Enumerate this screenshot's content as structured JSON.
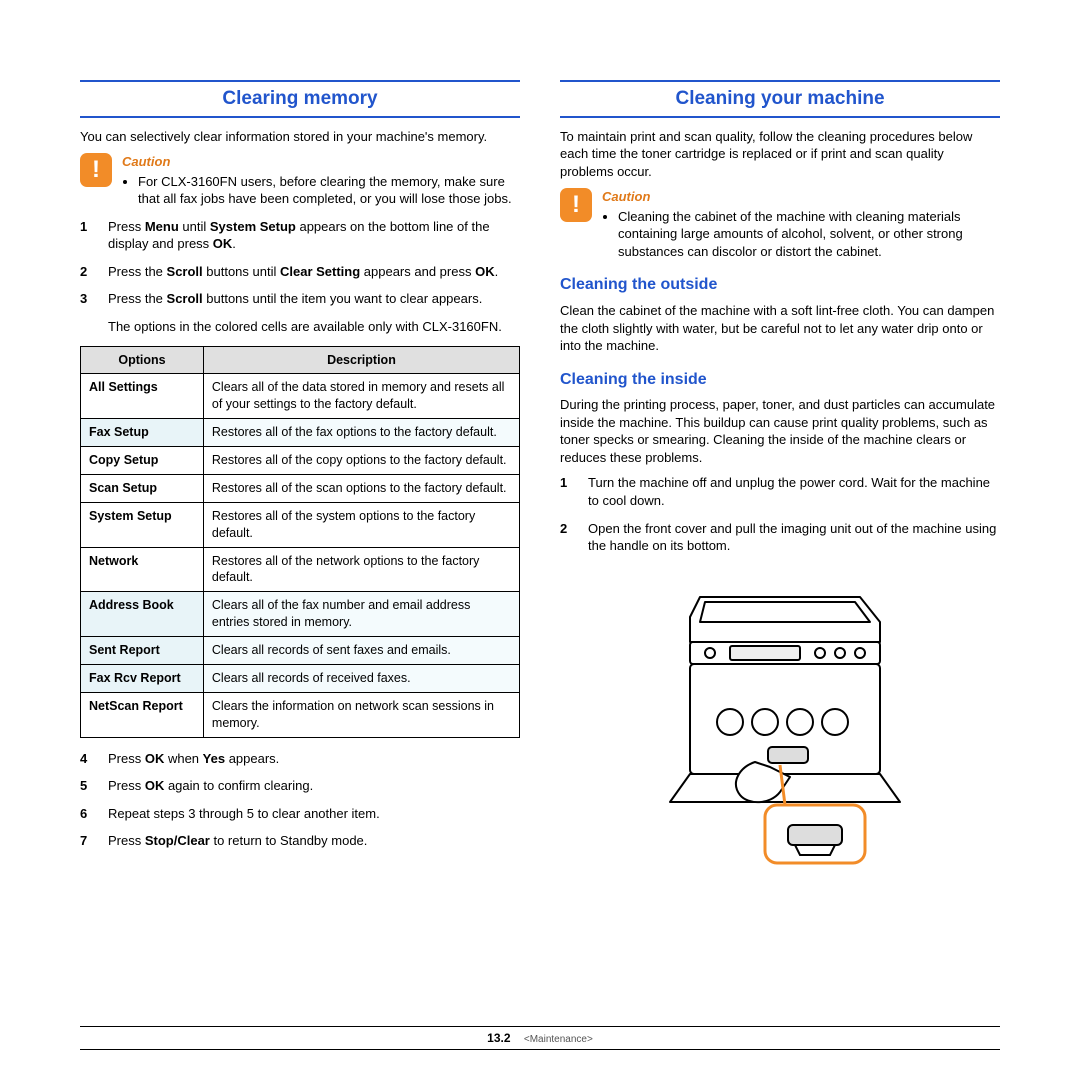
{
  "left": {
    "title": "Clearing memory",
    "intro": "You can selectively clear information stored in your machine's memory.",
    "caution": {
      "label": "Caution",
      "items": [
        "For CLX-3160FN users, before clearing the memory, make sure that all fax jobs have been completed, or you will lose those jobs."
      ]
    },
    "steps_a": [
      {
        "n": "1",
        "html": "Press <b>Menu</b> until <b>System Setup</b> appears on the bottom line of the display and press <b>OK</b>."
      },
      {
        "n": "2",
        "html": "Press the <b>Scroll</b> buttons until <b>Clear Setting</b> appears and press <b>OK</b>."
      },
      {
        "n": "3",
        "html": "Press the <b>Scroll</b> buttons until the item you want to clear appears.",
        "extra": "The options in the colored cells are available only with CLX-3160FN."
      }
    ],
    "table": {
      "headers": [
        "Options",
        "Description"
      ],
      "rows": [
        {
          "opt": "All Settings",
          "desc": "Clears all of the data stored in memory and resets all of your settings to the factory default.",
          "tint": false
        },
        {
          "opt": "Fax Setup",
          "desc": "Restores all of the fax options to the factory default.",
          "tint": true
        },
        {
          "opt": "Copy Setup",
          "desc": "Restores all of the copy options to the factory default.",
          "tint": false
        },
        {
          "opt": "Scan Setup",
          "desc": "Restores all of the scan options to the factory default.",
          "tint": false
        },
        {
          "opt": "System Setup",
          "desc": "Restores all of the system options to the factory default.",
          "tint": false
        },
        {
          "opt": "Network",
          "desc": "Restores all of the network options to the factory default.",
          "tint": false
        },
        {
          "opt": "Address Book",
          "desc": "Clears all of the fax number and email address entries stored in memory.",
          "tint": true
        },
        {
          "opt": "Sent Report",
          "desc": "Clears all records of sent faxes and emails.",
          "tint": true
        },
        {
          "opt": "Fax Rcv Report",
          "desc": "Clears all records of received faxes.",
          "tint": true
        },
        {
          "opt": "NetScan Report",
          "desc": "Clears the information on network scan sessions in memory.",
          "tint": false
        }
      ]
    },
    "steps_b": [
      {
        "n": "4",
        "html": "Press <b>OK</b> when <b>Yes</b> appears."
      },
      {
        "n": "5",
        "html": "Press <b>OK</b> again to confirm clearing."
      },
      {
        "n": "6",
        "html": "Repeat steps 3 through 5 to clear another item."
      },
      {
        "n": "7",
        "html": "Press <b>Stop/Clear</b> to return to Standby mode."
      }
    ]
  },
  "right": {
    "title": "Cleaning your machine",
    "intro": "To maintain print and scan quality, follow the cleaning procedures below each time the toner cartridge is replaced or if print and scan quality problems occur.",
    "caution": {
      "label": "Caution",
      "items": [
        "Cleaning the cabinet of the machine with cleaning materials containing large amounts of alcohol, solvent, or other strong substances can discolor or distort the cabinet."
      ]
    },
    "outside": {
      "title": "Cleaning the outside",
      "text": "Clean the cabinet of the machine with a soft lint-free cloth. You can dampen the cloth slightly with water, but be careful not to let any water drip onto or into the machine."
    },
    "inside": {
      "title": "Cleaning the inside",
      "text": "During the printing process, paper, toner, and dust particles can accumulate inside the machine. This buildup can cause print quality problems, such as toner specks or smearing. Cleaning the inside of the machine clears or reduces these problems.",
      "steps": [
        {
          "n": "1",
          "html": "Turn the machine off and unplug the power cord. Wait for the machine to cool down."
        },
        {
          "n": "2",
          "html": "Open the front cover and pull the imaging unit out of the machine using the handle on its bottom."
        }
      ]
    }
  },
  "footer": {
    "page": "13.2",
    "chapter": "<Maintenance>"
  },
  "colors": {
    "accent": "#2155cc",
    "caution": "#f28c28",
    "caution_text": "#e07a1a",
    "tint_opt": "#e8f4f8",
    "tint_desc": "#f4fbfd",
    "header_bg": "#e0e0e0"
  }
}
